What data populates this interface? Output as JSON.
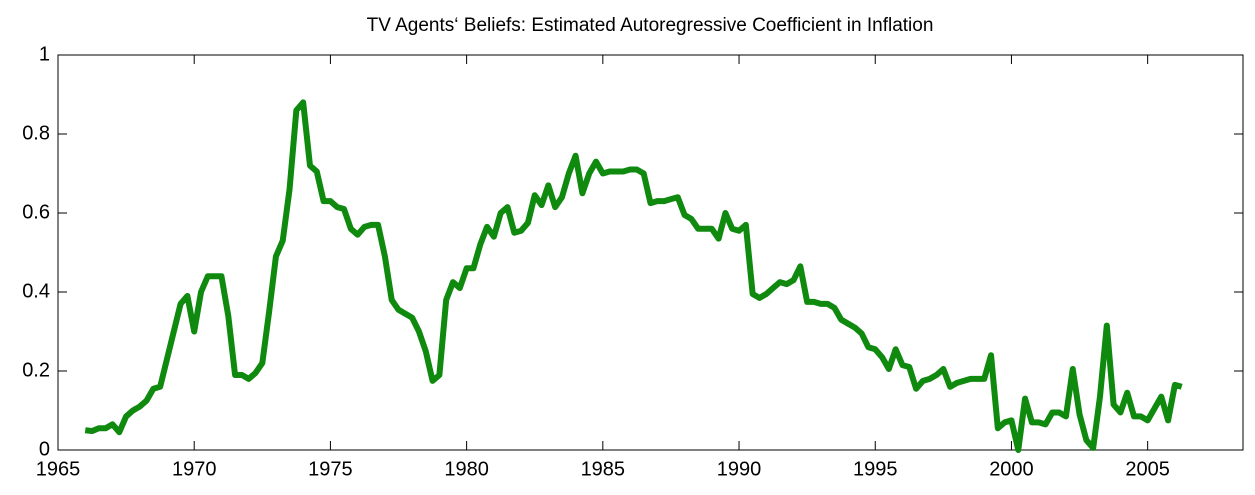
{
  "chart_data": {
    "type": "line",
    "title": "TV Agents‘ Beliefs: Estimated Autoregressive Coefficient in Inflation",
    "x": [
      1966,
      1966.25,
      1966.5,
      1966.75,
      1967,
      1967.25,
      1967.5,
      1967.75,
      1968,
      1968.25,
      1968.5,
      1968.75,
      1969,
      1969.25,
      1969.5,
      1969.75,
      1970,
      1970.25,
      1970.5,
      1970.75,
      1971,
      1971.25,
      1971.5,
      1971.75,
      1972,
      1972.25,
      1972.5,
      1972.75,
      1973,
      1973.25,
      1973.5,
      1973.75,
      1974,
      1974.25,
      1974.5,
      1974.75,
      1975,
      1975.25,
      1975.5,
      1975.75,
      1976,
      1976.25,
      1976.5,
      1976.75,
      1977,
      1977.25,
      1977.5,
      1977.75,
      1978,
      1978.25,
      1978.5,
      1978.75,
      1979,
      1979.25,
      1979.5,
      1979.75,
      1980,
      1980.25,
      1980.5,
      1980.75,
      1981,
      1981.25,
      1981.5,
      1981.75,
      1982,
      1982.25,
      1982.5,
      1982.75,
      1983,
      1983.25,
      1983.5,
      1983.75,
      1984,
      1984.25,
      1984.5,
      1984.75,
      1985,
      1985.25,
      1985.5,
      1985.75,
      1986,
      1986.25,
      1986.5,
      1986.75,
      1987,
      1987.25,
      1987.5,
      1987.75,
      1988,
      1988.25,
      1988.5,
      1988.75,
      1989,
      1989.25,
      1989.5,
      1989.75,
      1990,
      1990.25,
      1990.5,
      1990.75,
      1991,
      1991.25,
      1991.5,
      1991.75,
      1992,
      1992.25,
      1992.5,
      1992.75,
      1993,
      1993.25,
      1993.5,
      1993.75,
      1994,
      1994.25,
      1994.5,
      1994.75,
      1995,
      1995.25,
      1995.5,
      1995.75,
      1996,
      1996.25,
      1996.5,
      1996.75,
      1997,
      1997.25,
      1997.5,
      1997.75,
      1998,
      1998.25,
      1998.5,
      1998.75,
      1999,
      1999.25,
      1999.5,
      1999.75,
      2000,
      2000.25,
      2000.5,
      2000.75,
      2001,
      2001.25,
      2001.5,
      2001.75,
      2002,
      2002.25,
      2002.5,
      2002.75,
      2003,
      2003.25,
      2003.5,
      2003.75,
      2004,
      2004.25,
      2004.5,
      2004.75,
      2005,
      2005.25,
      2005.5,
      2005.75,
      2006,
      2006.25
    ],
    "series": [
      {
        "color": "#0f8a0f",
        "values": [
          0.05,
          0.048,
          0.055,
          0.055,
          0.065,
          0.045,
          0.085,
          0.1,
          0.11,
          0.125,
          0.155,
          0.16,
          0.23,
          0.3,
          0.37,
          0.39,
          0.3,
          0.4,
          0.44,
          0.44,
          0.44,
          0.34,
          0.19,
          0.19,
          0.18,
          0.195,
          0.22,
          0.35,
          0.49,
          0.53,
          0.66,
          0.86,
          0.88,
          0.72,
          0.705,
          0.63,
          0.63,
          0.615,
          0.61,
          0.56,
          0.545,
          0.565,
          0.57,
          0.57,
          0.49,
          0.38,
          0.355,
          0.345,
          0.335,
          0.3,
          0.25,
          0.175,
          0.19,
          0.38,
          0.425,
          0.41,
          0.46,
          0.46,
          0.52,
          0.565,
          0.54,
          0.6,
          0.615,
          0.55,
          0.555,
          0.575,
          0.645,
          0.62,
          0.67,
          0.615,
          0.64,
          0.7,
          0.745,
          0.65,
          0.7,
          0.73,
          0.7,
          0.705,
          0.705,
          0.705,
          0.71,
          0.71,
          0.7,
          0.625,
          0.63,
          0.63,
          0.635,
          0.64,
          0.595,
          0.585,
          0.56,
          0.56,
          0.56,
          0.535,
          0.6,
          0.56,
          0.555,
          0.57,
          0.395,
          0.385,
          0.395,
          0.41,
          0.425,
          0.42,
          0.43,
          0.465,
          0.375,
          0.375,
          0.37,
          0.37,
          0.36,
          0.33,
          0.32,
          0.31,
          0.295,
          0.26,
          0.255,
          0.235,
          0.205,
          0.255,
          0.215,
          0.21,
          0.155,
          0.175,
          0.18,
          0.19,
          0.205,
          0.16,
          0.17,
          0.175,
          0.18,
          0.18,
          0.18,
          0.24,
          0.055,
          0.07,
          0.075,
          0.0,
          0.13,
          0.07,
          0.07,
          0.065,
          0.095,
          0.095,
          0.085,
          0.205,
          0.09,
          0.025,
          0.005,
          0.135,
          0.315,
          0.115,
          0.095,
          0.145,
          0.085,
          0.085,
          0.075,
          0.105,
          0.135,
          0.075,
          0.165,
          0.16
        ]
      }
    ],
    "xlim": [
      1965,
      2008.5
    ],
    "xticks": [
      1965,
      1970,
      1975,
      1980,
      1985,
      1990,
      1995,
      2000,
      2005
    ],
    "ylim": [
      0,
      1
    ],
    "yticks": [
      0,
      0.2,
      0.4,
      0.6,
      0.8,
      1
    ]
  }
}
